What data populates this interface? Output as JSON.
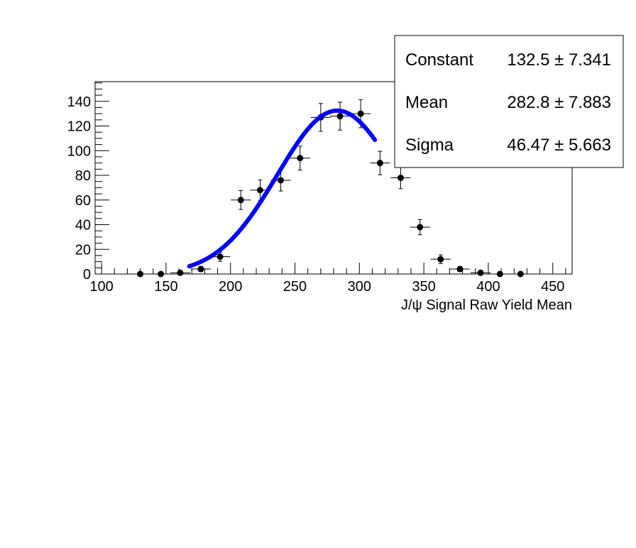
{
  "chart_data": {
    "type": "scatter",
    "xlabel": "J/ψ Signal Raw Yield Mean",
    "ylabel": "",
    "xlim": [
      95,
      465
    ],
    "ylim": [
      0,
      156
    ],
    "x_ticks": [
      100,
      150,
      200,
      250,
      300,
      350,
      400,
      450
    ],
    "y_ticks": [
      0,
      20,
      40,
      60,
      80,
      100,
      120,
      140
    ],
    "bin_halfwidth": 7.75,
    "points": [
      {
        "x": 130,
        "y": 0,
        "err": 0
      },
      {
        "x": 146,
        "y": 0,
        "err": 0
      },
      {
        "x": 161,
        "y": 1,
        "err": 1
      },
      {
        "x": 177,
        "y": 4,
        "err": 2
      },
      {
        "x": 192,
        "y": 14,
        "err": 3.7
      },
      {
        "x": 208,
        "y": 60,
        "err": 7.7
      },
      {
        "x": 223,
        "y": 68,
        "err": 8.2
      },
      {
        "x": 239,
        "y": 76,
        "err": 8.7
      },
      {
        "x": 254,
        "y": 94,
        "err": 9.7
      },
      {
        "x": 270,
        "y": 127,
        "err": 11.3
      },
      {
        "x": 285,
        "y": 128,
        "err": 11.3
      },
      {
        "x": 301,
        "y": 130,
        "err": 11.4
      },
      {
        "x": 316,
        "y": 90,
        "err": 9.5
      },
      {
        "x": 332,
        "y": 78,
        "err": 8.8
      },
      {
        "x": 347,
        "y": 38,
        "err": 6.2
      },
      {
        "x": 363,
        "y": 12,
        "err": 3.5
      },
      {
        "x": 378,
        "y": 4,
        "err": 2
      },
      {
        "x": 394,
        "y": 1,
        "err": 1
      },
      {
        "x": 409,
        "y": 0,
        "err": 0
      },
      {
        "x": 425,
        "y": 0,
        "err": 0
      }
    ],
    "fit": {
      "type": "gaussian",
      "x_range": [
        168,
        312
      ],
      "constant": 132.5,
      "mean": 282.8,
      "sigma": 46.47,
      "color": "#0000ff"
    },
    "stats_box": {
      "rows": [
        {
          "name": "Constant",
          "value": "132.5",
          "pm": "±",
          "error": "7.341"
        },
        {
          "name": "Mean",
          "value": "282.8",
          "pm": "±",
          "error": "7.883"
        },
        {
          "name": "Sigma",
          "value": "46.47",
          "pm": "±",
          "error": "5.663"
        }
      ]
    }
  }
}
